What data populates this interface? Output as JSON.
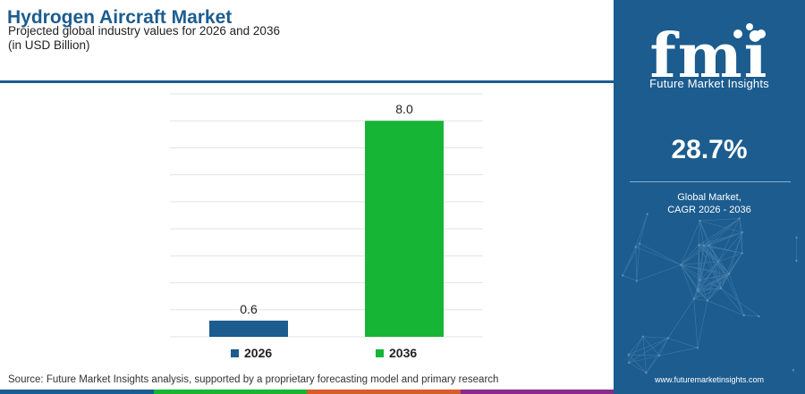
{
  "header": {
    "title": "Hydrogen Aircraft Market",
    "subtitle_line1": "Projected global industry values for 2026 and 2036",
    "subtitle_line2": "(in USD Billion)"
  },
  "chart_data": {
    "type": "bar",
    "categories": [
      "2026",
      "2036"
    ],
    "values": [
      0.6,
      8.0
    ],
    "data_labels": [
      "0.6",
      "8.0"
    ],
    "colors": [
      "#1c5c8f",
      "#17b536"
    ],
    "ylim": [
      0,
      9
    ],
    "grid": true,
    "legend": [
      {
        "label": "2026",
        "color": "#1c5c8f"
      },
      {
        "label": "2036",
        "color": "#17b536"
      }
    ],
    "legend_position": "bottom"
  },
  "source": "Source: Future Market Insights analysis, supported by a proprietary forecasting model and primary research",
  "panel": {
    "logo_text": "fmi",
    "brand": "Future Market Insights",
    "cagr_value": "28.7%",
    "caption_line1": "Global Market,",
    "caption_line2": "CAGR 2026 - 2036",
    "website": "www.futuremarketinsights.com",
    "background_color": "#1c5c8f"
  },
  "strip_colors": [
    "#1c5c8f",
    "#17b536",
    "#d95a2b",
    "#8a2a8a"
  ]
}
